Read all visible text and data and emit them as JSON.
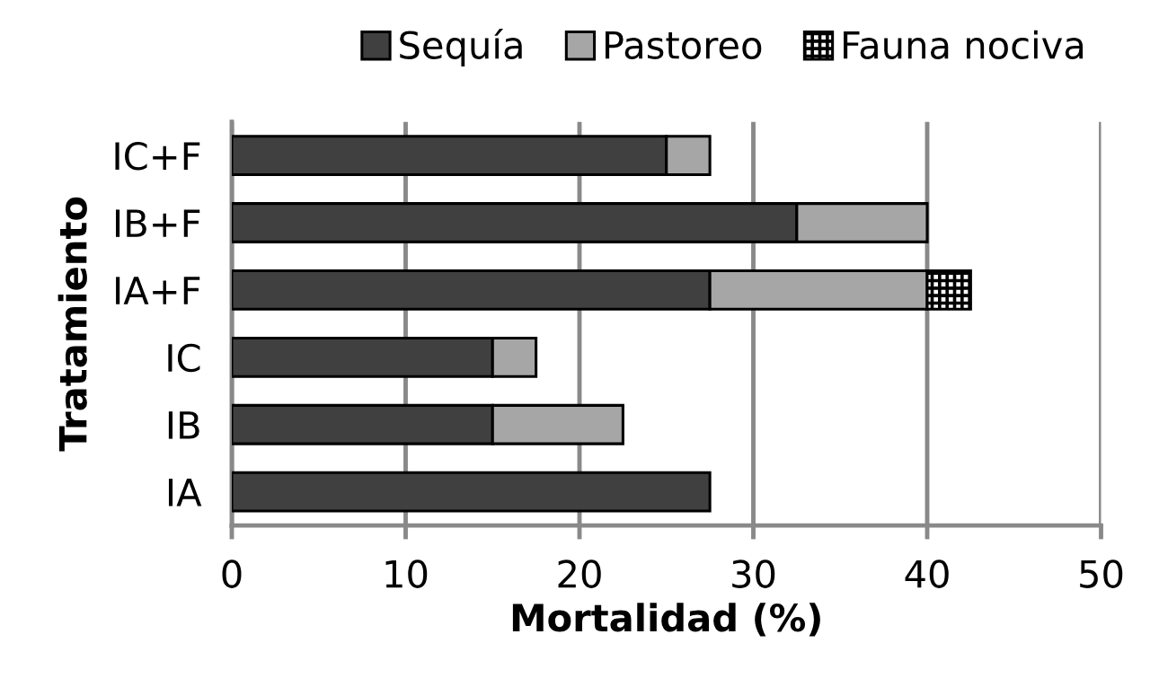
{
  "chart_data": {
    "type": "bar",
    "orientation": "horizontal",
    "stacked": true,
    "categories": [
      "IC+F",
      "IB+F",
      "IA+F",
      "IC",
      "IB",
      "IA"
    ],
    "series": [
      {
        "name": "Sequía",
        "color": "#404040",
        "values": [
          25,
          32.5,
          27.5,
          15,
          15,
          27.5
        ]
      },
      {
        "name": "Pastoreo",
        "color": "#a6a6a6",
        "values": [
          2.5,
          7.5,
          12.5,
          2.5,
          7.5,
          null
        ]
      },
      {
        "name": "Fauna nociva",
        "color": "#000000",
        "values": [
          null,
          null,
          2.5,
          null,
          null,
          null
        ]
      }
    ],
    "xlabel": "Mortalidad (%)",
    "ylabel": "Tratamiento",
    "xlim": [
      0,
      50
    ],
    "xticks": [
      0,
      10,
      20,
      30,
      40,
      50
    ],
    "grid": "x",
    "legend": "top right"
  }
}
